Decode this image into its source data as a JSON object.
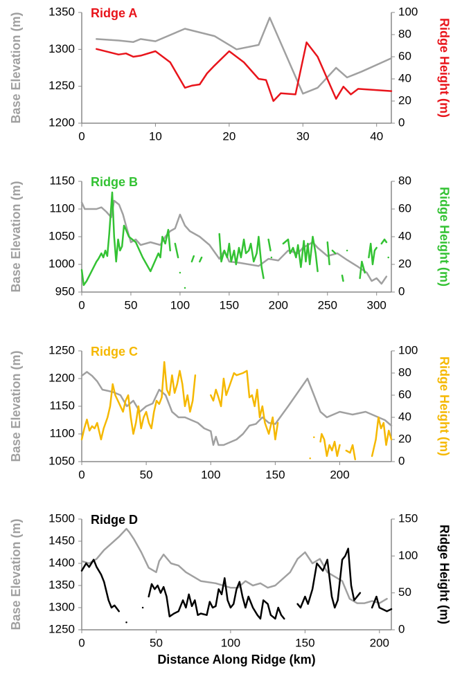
{
  "chart_data": [
    {
      "type": "line",
      "title": "Ridge A",
      "ylabel": "Base Elevation (m)",
      "y2label": "Ridge Height (m)",
      "xlim": [
        0,
        42
      ],
      "xticks": [
        0,
        10,
        20,
        30,
        40
      ],
      "ylim": [
        1200,
        1350
      ],
      "yticks": [
        1200,
        1250,
        1300,
        1350
      ],
      "y2lim": [
        0,
        100
      ],
      "y2ticks": [
        0,
        20,
        40,
        60,
        80,
        100
      ],
      "series": [
        {
          "color": "#a0a0a0",
          "x": [
            2,
            5,
            7,
            8,
            10,
            14,
            18,
            21,
            24,
            25.5,
            30,
            32,
            34.5,
            36,
            38,
            42
          ],
          "values": [
            1314,
            1312,
            1310,
            1314,
            1311,
            1328,
            1318,
            1300,
            1306,
            1343,
            1240,
            1248,
            1275,
            1262,
            1270,
            1288
          ]
        },
        {
          "color": "#e8141b",
          "axis": "y2",
          "x": [
            2,
            5,
            6,
            7,
            8,
            10,
            12,
            14,
            15,
            16,
            17,
            18,
            20,
            22,
            24,
            25,
            26,
            27,
            29,
            30.5,
            32,
            34.5,
            35.5,
            36.5,
            37.5,
            42
          ],
          "values": [
            67,
            62,
            63,
            60,
            61,
            65,
            55,
            32,
            34,
            35,
            45,
            52,
            65,
            55,
            40,
            39,
            20,
            27,
            26,
            73,
            60,
            22,
            33,
            26,
            31,
            29
          ]
        }
      ]
    },
    {
      "type": "line",
      "title": "Ridge B",
      "ylabel": "Base Elevation (m)",
      "y2label": "Ridge Height (m)",
      "xlim": [
        0,
        315
      ],
      "xticks": [
        0,
        50,
        100,
        150,
        200,
        250,
        300
      ],
      "ylim": [
        950,
        1150
      ],
      "yticks": [
        950,
        1000,
        1050,
        1100,
        1150
      ],
      "y2lim": [
        0,
        80
      ],
      "y2ticks": [
        0,
        20,
        40,
        60,
        80
      ],
      "series": [
        {
          "color": "#a0a0a0",
          "x": [
            0,
            3,
            15,
            20,
            25,
            30,
            33,
            38,
            42,
            45,
            50,
            55,
            60,
            70,
            80,
            85,
            90,
            95,
            100,
            105,
            110,
            120,
            130,
            140,
            145,
            150,
            160,
            170,
            180,
            190,
            200,
            210,
            220,
            225,
            235,
            240,
            250,
            260,
            270,
            280,
            290,
            295,
            300,
            305,
            310
          ],
          "values": [
            1112,
            1100,
            1100,
            1103,
            1095,
            1085,
            1115,
            1108,
            1090,
            1070,
            1040,
            1045,
            1035,
            1040,
            1035,
            1050,
            1060,
            1065,
            1090,
            1070,
            1060,
            1050,
            1035,
            1010,
            1025,
            1005,
            1003,
            1000,
            997,
            1010,
            1007,
            1025,
            1020,
            1030,
            1040,
            1030,
            1015,
            1020,
            1008,
            997,
            985,
            970,
            975,
            965,
            978
          ]
        },
        {
          "color": "#33c233",
          "axis": "y2",
          "x": [
            0,
            2,
            5,
            15,
            17,
            20,
            22,
            24,
            26,
            28,
            31,
            33,
            35,
            37,
            39,
            41,
            43,
            45,
            48,
            55,
            62,
            70,
            78,
            80,
            82,
            85,
            88,
            90,
            91,
            95,
            98,
            99,
            100,
            101,
            105,
            106,
            112,
            114,
            115,
            120,
            122,
            123,
            140,
            142,
            145,
            148,
            150,
            152,
            155,
            157,
            160,
            162,
            165,
            167,
            170,
            172,
            175,
            178,
            180,
            183,
            185,
            186,
            190,
            192,
            192.5,
            193,
            194,
            205,
            210,
            212,
            215,
            218,
            220,
            223,
            226,
            228,
            230,
            232,
            235,
            238,
            240,
            241,
            250,
            252,
            253,
            255,
            258,
            259,
            265,
            266,
            267,
            270,
            271,
            283,
            285,
            288,
            289,
            292,
            294,
            296,
            298,
            300,
            301,
            305,
            308,
            310,
            311,
            312
          ],
          "values": [
            16,
            5,
            8,
            22,
            24,
            28,
            25,
            30,
            26,
            42,
            72,
            40,
            22,
            38,
            30,
            33,
            48,
            45,
            40,
            36,
            25,
            15,
            28,
            25,
            40,
            35,
            45,
            30,
            null,
            35,
            25,
            null,
            14,
            null,
            3,
            null,
            22,
            26,
            null,
            22,
            25,
            null,
            42,
            22,
            30,
            25,
            35,
            22,
            30,
            20,
            32,
            25,
            38,
            28,
            30,
            35,
            22,
            28,
            40,
            18,
            10,
            null,
            38,
            30,
            null,
            25,
            null,
            35,
            38,
            28,
            32,
            25,
            34,
            18,
            37,
            22,
            35,
            20,
            40,
            28,
            15,
            null,
            36,
            20,
            null,
            30,
            28,
            null,
            12,
            8,
            null,
            30,
            null,
            10,
            22,
            14,
            null,
            25,
            35,
            20,
            30,
            32,
            null,
            35,
            38,
            36,
            null,
            25
          ]
        }
      ]
    },
    {
      "type": "line",
      "title": "Ridge C",
      "ylabel": "Base Elevation (m)",
      "y2label": "Ridge Height (m)",
      "xlim": [
        0,
        240
      ],
      "xticks": [
        0,
        50,
        100,
        150,
        200
      ],
      "ylim": [
        1050,
        1250
      ],
      "yticks": [
        1050,
        1100,
        1150,
        1200,
        1250
      ],
      "y2lim": [
        0,
        100
      ],
      "y2ticks": [
        0,
        20,
        40,
        60,
        80,
        100
      ],
      "series": [
        {
          "color": "#a0a0a0",
          "x": [
            0,
            4,
            8,
            12,
            16,
            20,
            25,
            30,
            35,
            40,
            45,
            50,
            55,
            60,
            65,
            70,
            75,
            80,
            90,
            95,
            100,
            102,
            104,
            106,
            110,
            115,
            120,
            125,
            130,
            135,
            140,
            145,
            150,
            160,
            175,
            180,
            185,
            190,
            200,
            210,
            220,
            230,
            235,
            240
          ],
          "values": [
            1205,
            1212,
            1205,
            1195,
            1180,
            1178,
            1175,
            1170,
            1150,
            1160,
            1140,
            1150,
            1155,
            1180,
            1170,
            1140,
            1130,
            1130,
            1120,
            1110,
            1105,
            1080,
            1095,
            1080,
            1080,
            1085,
            1090,
            1100,
            1115,
            1118,
            1130,
            1120,
            1118,
            1150,
            1200,
            1170,
            1140,
            1130,
            1140,
            1135,
            1140,
            1130,
            1125,
            1115
          ]
        },
        {
          "color": "#f5b800",
          "axis": "y2",
          "x": [
            0,
            2,
            4,
            6,
            8,
            10,
            12,
            15,
            17,
            20,
            22,
            24,
            26,
            28,
            30,
            32,
            34,
            36,
            38,
            40,
            42,
            44,
            46,
            48,
            50,
            52,
            54,
            56,
            58,
            60,
            62,
            64,
            66,
            68,
            70,
            72,
            74,
            76,
            78,
            80,
            82,
            84,
            86,
            88,
            89,
            100,
            102,
            104,
            106,
            108,
            110,
            112,
            115,
            118,
            120,
            125,
            128,
            130,
            132,
            134,
            136,
            138,
            140,
            142,
            145,
            148,
            150,
            152,
            153,
            177,
            178,
            180,
            181,
            185,
            186,
            188,
            190,
            192,
            194,
            196,
            198,
            200,
            201,
            205,
            208,
            210,
            212,
            213,
            225,
            228,
            230,
            232,
            234,
            236,
            238,
            240
          ],
          "values": [
            20,
            30,
            38,
            28,
            32,
            30,
            35,
            20,
            30,
            40,
            50,
            70,
            60,
            55,
            50,
            45,
            55,
            60,
            40,
            25,
            35,
            50,
            30,
            40,
            45,
            35,
            30,
            45,
            55,
            52,
            58,
            90,
            65,
            60,
            78,
            62,
            70,
            82,
            70,
            50,
            60,
            45,
            55,
            78,
            null,
            60,
            55,
            65,
            58,
            50,
            75,
            60,
            70,
            80,
            78,
            80,
            82,
            58,
            60,
            50,
            65,
            40,
            50,
            35,
            25,
            40,
            20,
            35,
            null,
            3,
            null,
            22,
            null,
            18,
            25,
            20,
            5,
            15,
            10,
            18,
            5,
            15,
            null,
            10,
            8,
            15,
            2,
            null,
            5,
            20,
            40,
            30,
            35,
            15,
            28,
            20
          ]
        }
      ]
    },
    {
      "type": "line",
      "title": "Ridge D",
      "ylabel": "Base Elevation (m)",
      "y2label": "Ridge Height (m)",
      "xlabel": "Distance Along Ridge (km)",
      "xlim": [
        0,
        208
      ],
      "xticks": [
        0,
        50,
        100,
        150,
        200
      ],
      "ylim": [
        1250,
        1500
      ],
      "yticks": [
        1250,
        1300,
        1350,
        1400,
        1450,
        1500
      ],
      "y2lim": [
        0,
        150
      ],
      "y2ticks": [
        0,
        50,
        100,
        150
      ],
      "series": [
        {
          "color": "#a0a0a0",
          "x": [
            0,
            5,
            10,
            15,
            20,
            25,
            30,
            32,
            35,
            40,
            45,
            50,
            52,
            55,
            60,
            65,
            70,
            75,
            80,
            90,
            100,
            105,
            110,
            115,
            120,
            125,
            130,
            140,
            145,
            150,
            155,
            160,
            165,
            170,
            175,
            180,
            185,
            190,
            195,
            200,
            205
          ],
          "values": [
            1405,
            1400,
            1410,
            1430,
            1445,
            1460,
            1478,
            1470,
            1455,
            1425,
            1390,
            1380,
            1405,
            1420,
            1400,
            1395,
            1380,
            1370,
            1360,
            1355,
            1345,
            1345,
            1360,
            1350,
            1355,
            1345,
            1350,
            1380,
            1410,
            1425,
            1400,
            1410,
            1380,
            1370,
            1360,
            1320,
            1310,
            1310,
            1315,
            1310,
            1320
          ]
        },
        {
          "color": "#000000",
          "axis": "y2",
          "x": [
            0,
            3,
            5,
            8,
            10,
            13,
            15,
            18,
            20,
            22,
            25,
            26,
            30,
            31,
            41,
            42,
            45,
            47,
            49,
            51,
            53,
            55,
            57,
            59,
            62,
            65,
            68,
            70,
            72,
            74,
            76,
            78,
            80,
            84,
            86,
            88,
            90,
            92,
            94,
            96,
            98,
            100,
            102,
            104,
            106,
            108,
            110,
            112,
            115,
            118,
            120,
            122,
            125,
            127,
            130,
            132,
            134,
            136,
            137,
            145,
            147,
            150,
            152,
            155,
            158,
            160,
            162,
            165,
            168,
            170,
            172,
            175,
            177,
            179,
            181,
            183,
            185,
            187,
            188,
            195,
            198,
            200,
            205,
            208
          ],
          "values": [
            80,
            90,
            85,
            95,
            85,
            75,
            65,
            40,
            30,
            33,
            25,
            null,
            10,
            null,
            30,
            null,
            45,
            62,
            55,
            60,
            50,
            58,
            45,
            18,
            22,
            25,
            40,
            30,
            48,
            32,
            40,
            20,
            22,
            20,
            38,
            30,
            32,
            55,
            48,
            70,
            40,
            30,
            35,
            55,
            65,
            45,
            30,
            45,
            30,
            20,
            15,
            40,
            35,
            20,
            15,
            30,
            20,
            15,
            null,
            35,
            30,
            45,
            35,
            55,
            90,
            85,
            80,
            95,
            45,
            30,
            40,
            95,
            100,
            110,
            60,
            40,
            45,
            50,
            null,
            30,
            45,
            30,
            25,
            28
          ]
        }
      ]
    }
  ]
}
